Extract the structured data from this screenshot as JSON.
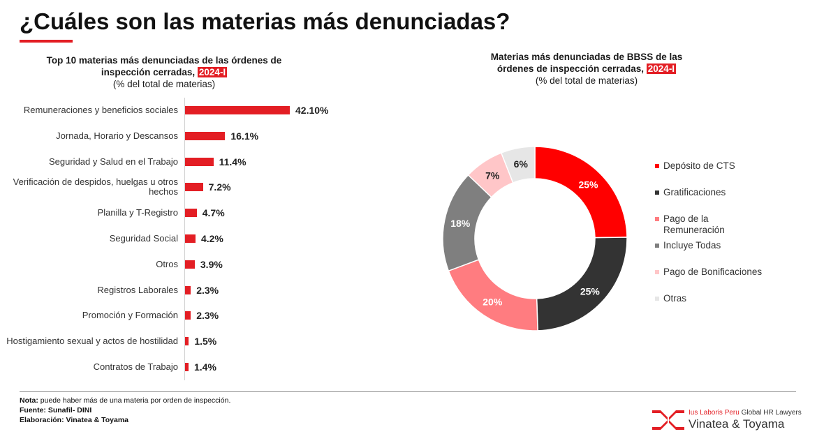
{
  "header": {
    "title": "¿Cuáles son las materias más denunciadas?"
  },
  "left_chart": {
    "title_line1": "Top 10 materias más denunciadas de las órdenes de",
    "title_line2": "inspección cerradas,",
    "period": "2024-I",
    "subtitle": "(% del total de materias)"
  },
  "right_chart": {
    "title_line1": "Materias más denunciadas de BBSS de las",
    "title_line2": "órdenes de inspección cerradas,",
    "period": "2024-I",
    "subtitle": "(% del total de materias)"
  },
  "chart_data": [
    {
      "type": "bar",
      "orientation": "horizontal",
      "title": "Top 10 materias más denunciadas de las órdenes de inspección cerradas, 2024-I",
      "subtitle": "(% del total de materias)",
      "categories": [
        "Remuneraciones y beneficios sociales",
        "Jornada, Horario y Descansos",
        "Seguridad y Salud en el Trabajo",
        "Verificación de despidos, huelgas u otros hechos",
        "Planilla y T-Registro",
        "Seguridad Social",
        "Otros",
        "Registros Laborales",
        "Promoción y Formación",
        "Hostigamiento sexual y actos de hostilidad",
        "Contratos de Trabajo"
      ],
      "values": [
        42.1,
        16.1,
        11.4,
        7.2,
        4.7,
        4.2,
        3.9,
        2.3,
        2.3,
        1.5,
        1.4
      ],
      "value_labels": [
        "42.10%",
        "16.1%",
        "11.4%",
        "7.2%",
        "4.7%",
        "4.2%",
        "3.9%",
        "2.3%",
        "2.3%",
        "1.5%",
        "1.4%"
      ],
      "xlim": [
        0,
        42.1
      ],
      "color": "#e31e24"
    },
    {
      "type": "pie",
      "donut": true,
      "title": "Materias más denunciadas de BBSS de las órdenes de inspección cerradas, 2024-I",
      "subtitle": "(% del total de materias)",
      "labels": [
        "Depósito de CTS",
        "Gratificaciones",
        "Pago de la Remuneración",
        "Incluye Todas",
        "Pago de Bonificaciones",
        "Otras"
      ],
      "values": [
        25,
        25,
        20,
        18,
        7,
        6
      ],
      "value_labels": [
        "25%",
        "25%",
        "20%",
        "18%",
        "7%",
        "6%"
      ],
      "colors": [
        "#ff0000",
        "#333333",
        "#ff7c80",
        "#7f7f7f",
        "#ffc6c8",
        "#e6e6e6"
      ],
      "label_colors": [
        "#ffffff",
        "#ffffff",
        "#ffffff",
        "#ffffff",
        "#222222",
        "#222222"
      ],
      "legend_position": "right"
    }
  ],
  "footer": {
    "note_label": "Nota:",
    "note_text": " puede haber más de una materia por orden de inspección.",
    "source_label": "Fuente:",
    "source_text": " Sunafil- DINI",
    "credit_label": "Elaboración:",
    "credit_text": " Vinatea & Toyama"
  },
  "brand": {
    "network_red": "Ius Laboris Peru",
    "network_rest": " Global HR Lawyers",
    "name": "Vinatea & Toyama"
  }
}
